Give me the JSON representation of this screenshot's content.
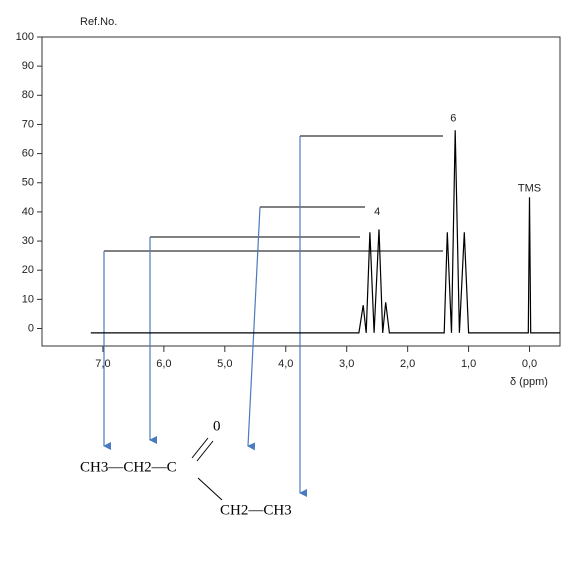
{
  "chart_data": {
    "type": "line",
    "y_label": "Ref.No.",
    "x_label": "δ (ppm)",
    "x": [
      7.2,
      2.8,
      2.73,
      2.68,
      2.62,
      2.55,
      2.47,
      2.41,
      2.36,
      2.3,
      1.4,
      1.35,
      1.28,
      1.22,
      1.15,
      1.07,
      1.0,
      0.02,
      0.0,
      -0.02,
      -0.5
    ],
    "values": [
      -1.5,
      -1.5,
      8,
      -1.5,
      33,
      -1.5,
      34,
      -1.5,
      9,
      -1.5,
      -1.5,
      33,
      -1.5,
      68,
      -1.5,
      33,
      -1.5,
      -1.5,
      45,
      -1.5,
      -1.5
    ],
    "color": "#000000",
    "xlim": [
      8,
      -0.5
    ],
    "ylim": [
      -6,
      100
    ],
    "xticks": [
      {
        "value": 7,
        "label": "7,0"
      },
      {
        "value": 6,
        "label": "6,0"
      },
      {
        "value": 5,
        "label": "5,0"
      },
      {
        "value": 4,
        "label": "4,0"
      },
      {
        "value": 3,
        "label": "3,0"
      },
      {
        "value": 2,
        "label": "2,0"
      },
      {
        "value": 1,
        "label": "1,0"
      },
      {
        "value": 0,
        "label": "0,0"
      }
    ],
    "yticks": [
      0,
      10,
      20,
      30,
      40,
      50,
      60,
      70,
      80,
      90,
      100
    ],
    "annotations": [
      {
        "text": "4",
        "x": 2.5,
        "y": 40
      },
      {
        "text": "6",
        "x": 1.25,
        "y": 72
      },
      {
        "text": "TMS",
        "x": 0.0,
        "y": 48
      }
    ]
  },
  "structure": {
    "left": "CH3—CH2—C",
    "oxygen": "0",
    "right": "CH2—CH3"
  }
}
